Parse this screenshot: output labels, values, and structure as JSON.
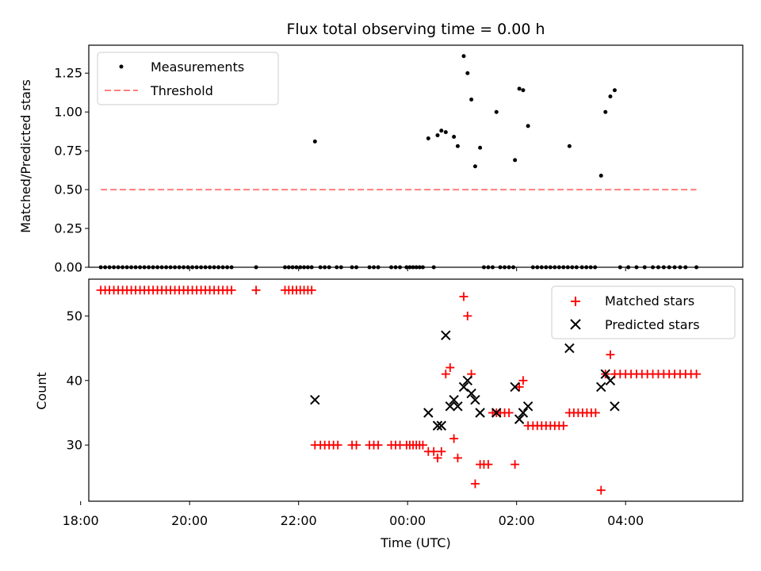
{
  "chart_data": [
    {
      "type": "scatter",
      "title": "Flux total observing time = 0.00 h",
      "xlabel": "",
      "ylabel": "Matched/Predicted stars",
      "xlim": [
        18.15,
        30.15
      ],
      "ylim": [
        0.0,
        1.43
      ],
      "yticks": [
        0.0,
        0.25,
        0.5,
        0.75,
        1.0,
        1.25
      ],
      "ytick_labels": [
        "0.00",
        "0.25",
        "0.50",
        "0.75",
        "1.00",
        "1.25"
      ],
      "legend": {
        "position": "upper-left",
        "entries": [
          "Measurements",
          "Threshold"
        ]
      },
      "series": [
        {
          "name": "Measurements",
          "marker": "dot",
          "color": "#000000",
          "points": [
            [
              18.37,
              0
            ],
            [
              18.45,
              0
            ],
            [
              18.53,
              0
            ],
            [
              18.61,
              0
            ],
            [
              18.69,
              0
            ],
            [
              18.77,
              0
            ],
            [
              18.85,
              0
            ],
            [
              18.93,
              0
            ],
            [
              19.01,
              0
            ],
            [
              19.09,
              0
            ],
            [
              19.17,
              0
            ],
            [
              19.25,
              0
            ],
            [
              19.33,
              0
            ],
            [
              19.41,
              0
            ],
            [
              19.49,
              0
            ],
            [
              19.57,
              0
            ],
            [
              19.65,
              0
            ],
            [
              19.73,
              0
            ],
            [
              19.81,
              0
            ],
            [
              19.89,
              0
            ],
            [
              19.97,
              0
            ],
            [
              20.05,
              0
            ],
            [
              20.13,
              0
            ],
            [
              20.21,
              0
            ],
            [
              20.29,
              0
            ],
            [
              20.37,
              0
            ],
            [
              20.45,
              0
            ],
            [
              20.53,
              0
            ],
            [
              20.61,
              0
            ],
            [
              20.69,
              0
            ],
            [
              20.77,
              0
            ],
            [
              21.22,
              0
            ],
            [
              21.75,
              0
            ],
            [
              21.82,
              0
            ],
            [
              21.89,
              0
            ],
            [
              21.96,
              0
            ],
            [
              22.03,
              0
            ],
            [
              22.1,
              0
            ],
            [
              22.17,
              0
            ],
            [
              22.24,
              0
            ],
            [
              22.3,
              0.81
            ],
            [
              22.4,
              0
            ],
            [
              22.48,
              0
            ],
            [
              22.56,
              0
            ],
            [
              22.7,
              0
            ],
            [
              22.78,
              0
            ],
            [
              22.98,
              0
            ],
            [
              23.06,
              0
            ],
            [
              23.3,
              0
            ],
            [
              23.38,
              0
            ],
            [
              23.46,
              0
            ],
            [
              23.7,
              0
            ],
            [
              23.78,
              0
            ],
            [
              23.86,
              0
            ],
            [
              23.98,
              0
            ],
            [
              24.04,
              0
            ],
            [
              24.1,
              0
            ],
            [
              24.16,
              0
            ],
            [
              24.22,
              0
            ],
            [
              24.28,
              0
            ],
            [
              24.48,
              0
            ],
            [
              24.38,
              0.83
            ],
            [
              24.55,
              0.85
            ],
            [
              24.62,
              0.88
            ],
            [
              24.7,
              0.87
            ],
            [
              24.85,
              0.84
            ],
            [
              24.92,
              0.78
            ],
            [
              25.03,
              1.36
            ],
            [
              25.1,
              1.25
            ],
            [
              25.17,
              1.08
            ],
            [
              25.24,
              0.65
            ],
            [
              25.33,
              0.77
            ],
            [
              25.63,
              1.0
            ],
            [
              25.97,
              0.69
            ],
            [
              26.05,
              1.15
            ],
            [
              26.12,
              1.14
            ],
            [
              26.21,
              0.91
            ],
            [
              26.97,
              0.78
            ],
            [
              27.55,
              0.59
            ],
            [
              27.63,
              1.0
            ],
            [
              27.72,
              1.1
            ],
            [
              27.8,
              1.14
            ],
            [
              25.4,
              0
            ],
            [
              25.48,
              0
            ],
            [
              25.56,
              0
            ],
            [
              25.7,
              0
            ],
            [
              25.78,
              0
            ],
            [
              25.86,
              0
            ],
            [
              25.94,
              0
            ],
            [
              26.3,
              0
            ],
            [
              26.38,
              0
            ],
            [
              26.46,
              0
            ],
            [
              26.54,
              0
            ],
            [
              26.62,
              0
            ],
            [
              26.7,
              0
            ],
            [
              26.78,
              0
            ],
            [
              26.86,
              0
            ],
            [
              26.94,
              0
            ],
            [
              27.02,
              0
            ],
            [
              27.1,
              0
            ],
            [
              27.2,
              0
            ],
            [
              27.28,
              0
            ],
            [
              27.36,
              0
            ],
            [
              27.44,
              0
            ],
            [
              27.9,
              0
            ],
            [
              28.05,
              0
            ],
            [
              28.2,
              0
            ],
            [
              28.35,
              0
            ],
            [
              28.5,
              0
            ],
            [
              28.6,
              0
            ],
            [
              28.7,
              0
            ],
            [
              28.8,
              0
            ],
            [
              28.9,
              0
            ],
            [
              29.0,
              0
            ],
            [
              29.1,
              0
            ],
            [
              29.3,
              0
            ]
          ]
        },
        {
          "name": "Threshold",
          "line_style": "dashed",
          "color": "#ff7f7f",
          "points": [
            [
              18.37,
              0.5
            ],
            [
              29.3,
              0.5
            ]
          ]
        }
      ]
    },
    {
      "type": "scatter",
      "title": "",
      "xlabel": "Time (UTC)",
      "ylabel": "Count",
      "xlim": [
        18.15,
        30.15
      ],
      "ylim": [
        21.3,
        55.7
      ],
      "yticks": [
        30,
        40,
        50
      ],
      "ytick_labels": [
        "30",
        "40",
        "50"
      ],
      "xticks": [
        18,
        20,
        22,
        24,
        26,
        28
      ],
      "xtick_labels": [
        "18:00",
        "20:00",
        "22:00",
        "00:00",
        "02:00",
        "04:00"
      ],
      "legend": {
        "position": "upper-right",
        "entries": [
          "Matched stars",
          "Predicted stars"
        ]
      },
      "series": [
        {
          "name": "Matched stars",
          "marker": "plus",
          "color": "#ff0000",
          "points": [
            [
              18.37,
              54
            ],
            [
              18.45,
              54
            ],
            [
              18.53,
              54
            ],
            [
              18.61,
              54
            ],
            [
              18.69,
              54
            ],
            [
              18.77,
              54
            ],
            [
              18.85,
              54
            ],
            [
              18.93,
              54
            ],
            [
              19.01,
              54
            ],
            [
              19.09,
              54
            ],
            [
              19.17,
              54
            ],
            [
              19.25,
              54
            ],
            [
              19.33,
              54
            ],
            [
              19.41,
              54
            ],
            [
              19.49,
              54
            ],
            [
              19.57,
              54
            ],
            [
              19.65,
              54
            ],
            [
              19.73,
              54
            ],
            [
              19.81,
              54
            ],
            [
              19.89,
              54
            ],
            [
              19.97,
              54
            ],
            [
              20.05,
              54
            ],
            [
              20.13,
              54
            ],
            [
              20.21,
              54
            ],
            [
              20.29,
              54
            ],
            [
              20.37,
              54
            ],
            [
              20.45,
              54
            ],
            [
              20.53,
              54
            ],
            [
              20.61,
              54
            ],
            [
              20.69,
              54
            ],
            [
              20.77,
              54
            ],
            [
              21.22,
              54
            ],
            [
              21.75,
              54
            ],
            [
              21.82,
              54
            ],
            [
              21.89,
              54
            ],
            [
              21.96,
              54
            ],
            [
              22.03,
              54
            ],
            [
              22.1,
              54
            ],
            [
              22.17,
              54
            ],
            [
              22.24,
              54
            ],
            [
              22.3,
              30
            ],
            [
              22.4,
              30
            ],
            [
              22.48,
              30
            ],
            [
              22.56,
              30
            ],
            [
              22.64,
              30
            ],
            [
              22.72,
              30
            ],
            [
              22.98,
              30
            ],
            [
              23.06,
              30
            ],
            [
              23.3,
              30
            ],
            [
              23.38,
              30
            ],
            [
              23.46,
              30
            ],
            [
              23.7,
              30
            ],
            [
              23.78,
              30
            ],
            [
              23.86,
              30
            ],
            [
              23.98,
              30
            ],
            [
              24.04,
              30
            ],
            [
              24.1,
              30
            ],
            [
              24.16,
              30
            ],
            [
              24.22,
              30
            ],
            [
              24.28,
              30
            ],
            [
              24.38,
              29
            ],
            [
              24.48,
              29
            ],
            [
              24.55,
              28
            ],
            [
              24.62,
              29
            ],
            [
              24.7,
              41
            ],
            [
              24.78,
              42
            ],
            [
              24.85,
              31
            ],
            [
              24.92,
              28
            ],
            [
              25.03,
              53
            ],
            [
              25.1,
              50
            ],
            [
              25.17,
              41
            ],
            [
              25.24,
              24
            ],
            [
              25.33,
              27
            ],
            [
              25.4,
              27
            ],
            [
              25.48,
              27
            ],
            [
              25.56,
              35
            ],
            [
              25.63,
              35
            ],
            [
              25.7,
              35
            ],
            [
              25.78,
              35
            ],
            [
              25.86,
              35
            ],
            [
              25.97,
              27
            ],
            [
              26.05,
              39
            ],
            [
              26.12,
              40
            ],
            [
              26.21,
              33
            ],
            [
              26.3,
              33
            ],
            [
              26.38,
              33
            ],
            [
              26.46,
              33
            ],
            [
              26.54,
              33
            ],
            [
              26.62,
              33
            ],
            [
              26.7,
              33
            ],
            [
              26.78,
              33
            ],
            [
              26.86,
              33
            ],
            [
              26.97,
              35
            ],
            [
              27.05,
              35
            ],
            [
              27.13,
              35
            ],
            [
              27.21,
              35
            ],
            [
              27.29,
              35
            ],
            [
              27.37,
              35
            ],
            [
              27.45,
              35
            ],
            [
              27.55,
              23
            ],
            [
              27.63,
              41
            ],
            [
              27.72,
              44
            ],
            [
              27.8,
              41
            ],
            [
              27.9,
              41
            ],
            [
              28.0,
              41
            ],
            [
              28.1,
              41
            ],
            [
              28.2,
              41
            ],
            [
              28.3,
              41
            ],
            [
              28.4,
              41
            ],
            [
              28.5,
              41
            ],
            [
              28.6,
              41
            ],
            [
              28.7,
              41
            ],
            [
              28.8,
              41
            ],
            [
              28.9,
              41
            ],
            [
              29.0,
              41
            ],
            [
              29.1,
              41
            ],
            [
              29.2,
              41
            ],
            [
              29.3,
              41
            ]
          ]
        },
        {
          "name": "Predicted stars",
          "marker": "x",
          "color": "#000000",
          "points": [
            [
              22.3,
              37
            ],
            [
              24.38,
              35
            ],
            [
              24.55,
              33
            ],
            [
              24.62,
              33
            ],
            [
              24.7,
              47
            ],
            [
              24.78,
              36
            ],
            [
              24.85,
              37
            ],
            [
              24.92,
              36
            ],
            [
              25.03,
              39
            ],
            [
              25.1,
              40
            ],
            [
              25.17,
              38
            ],
            [
              25.24,
              37
            ],
            [
              25.33,
              35
            ],
            [
              25.63,
              35
            ],
            [
              25.97,
              39
            ],
            [
              26.05,
              34
            ],
            [
              26.12,
              35
            ],
            [
              26.21,
              36
            ],
            [
              26.97,
              45
            ],
            [
              27.55,
              39
            ],
            [
              27.63,
              41
            ],
            [
              27.72,
              40
            ],
            [
              27.8,
              36
            ]
          ]
        }
      ]
    }
  ]
}
